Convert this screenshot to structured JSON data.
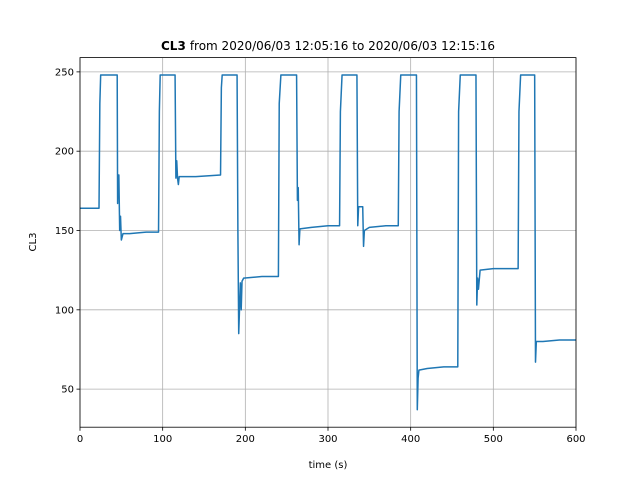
{
  "chart_data": {
    "type": "line",
    "title": {
      "name": "CL3",
      "text": "from 2020/06/03 12:05:16 to 2020/06/03 12:15:16"
    },
    "xlabel": "time (s)",
    "ylabel": "CL3",
    "x": [
      0,
      23,
      24,
      25,
      45,
      45.5,
      46,
      47,
      48,
      49,
      50,
      52,
      60,
      80,
      95,
      96,
      97,
      115,
      116,
      117,
      118,
      119,
      120,
      140,
      170,
      171,
      172,
      190,
      191,
      192,
      194,
      195,
      196,
      198,
      220,
      240,
      241,
      243,
      262,
      263,
      264,
      265,
      266,
      280,
      300,
      314,
      315,
      317,
      335,
      336,
      337,
      342,
      343,
      344,
      350,
      370,
      385,
      386,
      388,
      407,
      408,
      409,
      410,
      420,
      440,
      457,
      458,
      460,
      479,
      480,
      481,
      482,
      484,
      500,
      530,
      531,
      533,
      550,
      551,
      552,
      560,
      580,
      600
    ],
    "values": [
      164,
      164,
      230,
      248,
      248,
      167,
      185,
      185,
      150,
      159,
      144,
      148,
      148,
      149,
      149,
      225,
      248,
      248,
      183,
      194,
      183,
      179,
      184,
      184,
      185,
      240,
      248,
      248,
      150,
      85,
      117,
      100,
      118,
      120,
      121,
      121,
      230,
      248,
      248,
      169,
      177,
      141,
      151,
      152,
      153,
      153,
      225,
      248,
      248,
      153,
      165,
      165,
      140,
      150,
      152,
      153,
      153,
      225,
      248,
      248,
      37,
      57,
      62,
      63,
      64,
      64,
      225,
      248,
      248,
      103,
      120,
      113,
      125,
      126,
      126,
      225,
      248,
      248,
      67,
      80,
      80,
      81,
      81
    ],
    "color": "#1f77b4",
    "xlim": [
      0,
      600
    ],
    "ylim": [
      26,
      259
    ],
    "xticks": [
      0,
      100,
      200,
      300,
      400,
      500,
      600
    ],
    "yticks": [
      50,
      100,
      150,
      200,
      250
    ],
    "grid": true
  }
}
